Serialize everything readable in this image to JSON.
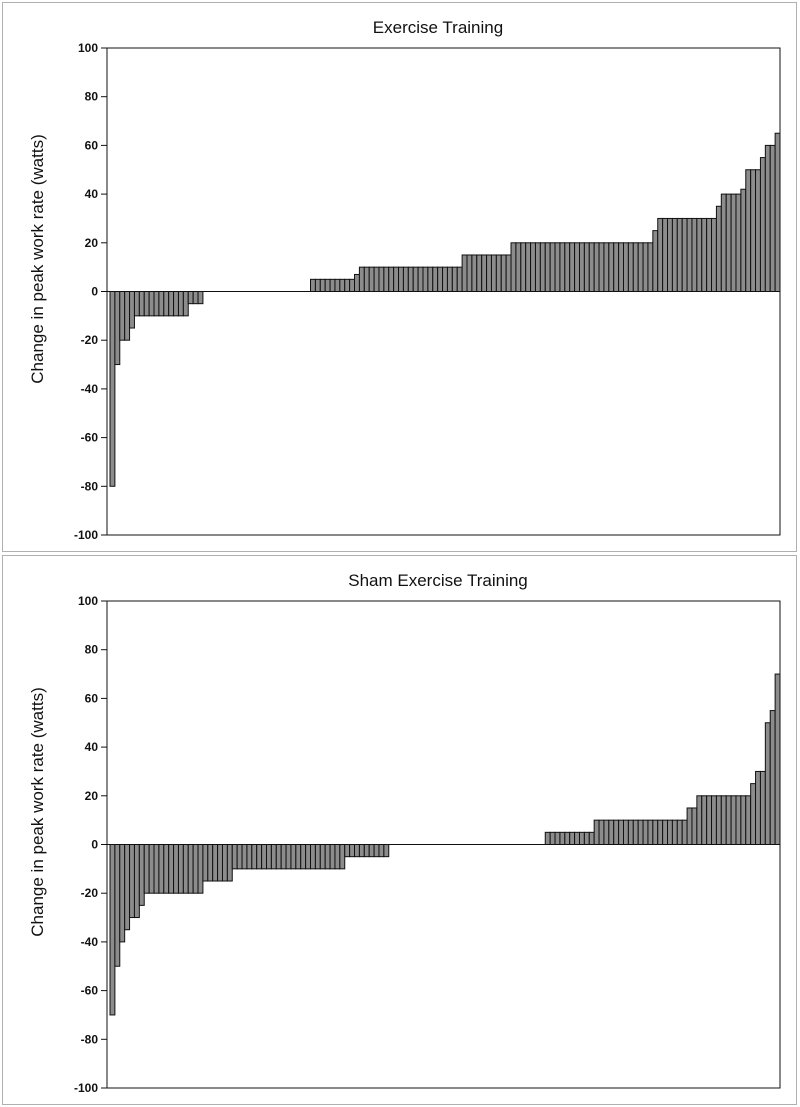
{
  "chart_data": [
    {
      "type": "bar",
      "title": "Exercise Training",
      "xlabel": "",
      "ylabel": "Change in peak work rate (watts)",
      "ylim": [
        -100,
        100
      ],
      "yticks": [
        100,
        80,
        60,
        40,
        20,
        0,
        -20,
        -40,
        -60,
        -80,
        -100
      ],
      "bar_color": "#8c8c8c",
      "values": [
        -80,
        -30,
        -20,
        -20,
        -15,
        -10,
        -10,
        -10,
        -10,
        -10,
        -10,
        -10,
        -10,
        -10,
        -10,
        -10,
        -5,
        -5,
        -5,
        0,
        0,
        0,
        0,
        0,
        0,
        0,
        0,
        0,
        0,
        0,
        0,
        0,
        0,
        0,
        0,
        0,
        0,
        0,
        0,
        0,
        0,
        5,
        5,
        5,
        5,
        5,
        5,
        5,
        5,
        5,
        7,
        10,
        10,
        10,
        10,
        10,
        10,
        10,
        10,
        10,
        10,
        10,
        10,
        10,
        10,
        10,
        10,
        10,
        10,
        10,
        10,
        10,
        15,
        15,
        15,
        15,
        15,
        15,
        15,
        15,
        15,
        15,
        20,
        20,
        20,
        20,
        20,
        20,
        20,
        20,
        20,
        20,
        20,
        20,
        20,
        20,
        20,
        20,
        20,
        20,
        20,
        20,
        20,
        20,
        20,
        20,
        20,
        20,
        20,
        20,
        20,
        25,
        30,
        30,
        30,
        30,
        30,
        30,
        30,
        30,
        30,
        30,
        30,
        30,
        35,
        40,
        40,
        40,
        40,
        42,
        50,
        50,
        50,
        55,
        60,
        60,
        65
      ]
    },
    {
      "type": "bar",
      "title": "Sham Exercise Training",
      "xlabel": "",
      "ylabel": "Change in peak work rate (watts)",
      "ylim": [
        -100,
        100
      ],
      "yticks": [
        100,
        80,
        60,
        40,
        20,
        0,
        -20,
        -40,
        -60,
        -80,
        -100
      ],
      "bar_color": "#8c8c8c",
      "values": [
        -70,
        -50,
        -40,
        -35,
        -30,
        -30,
        -25,
        -20,
        -20,
        -20,
        -20,
        -20,
        -20,
        -20,
        -20,
        -20,
        -20,
        -20,
        -20,
        -15,
        -15,
        -15,
        -15,
        -15,
        -15,
        -10,
        -10,
        -10,
        -10,
        -10,
        -10,
        -10,
        -10,
        -10,
        -10,
        -10,
        -10,
        -10,
        -10,
        -10,
        -10,
        -10,
        -10,
        -10,
        -10,
        -10,
        -10,
        -10,
        -5,
        -5,
        -5,
        -5,
        -5,
        -5,
        -5,
        -5,
        -5,
        0,
        0,
        0,
        0,
        0,
        0,
        0,
        0,
        0,
        0,
        0,
        0,
        0,
        0,
        0,
        0,
        0,
        0,
        0,
        0,
        0,
        0,
        0,
        0,
        0,
        0,
        0,
        0,
        0,
        0,
        0,
        0,
        5,
        5,
        5,
        5,
        5,
        5,
        5,
        5,
        5,
        5,
        10,
        10,
        10,
        10,
        10,
        10,
        10,
        10,
        10,
        10,
        10,
        10,
        10,
        10,
        10,
        10,
        10,
        10,
        10,
        15,
        15,
        20,
        20,
        20,
        20,
        20,
        20,
        20,
        20,
        20,
        20,
        20,
        25,
        30,
        30,
        50,
        55,
        70
      ]
    }
  ]
}
